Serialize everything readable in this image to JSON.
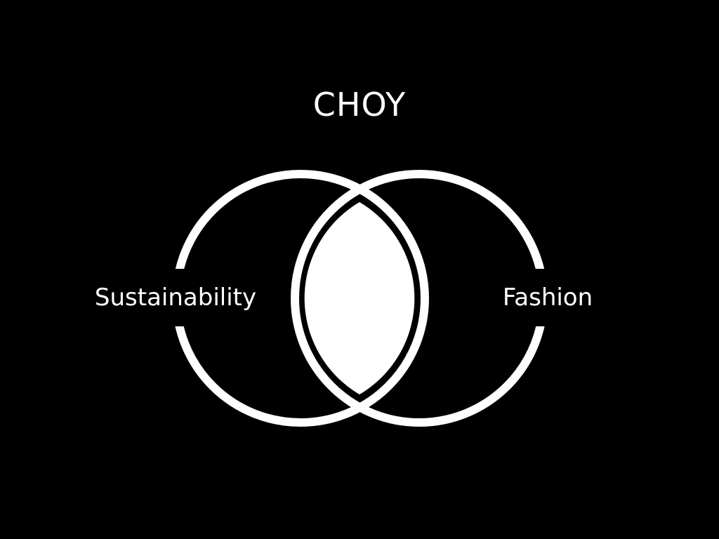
{
  "title": "CHOY",
  "sets": {
    "left": "Sustainability",
    "right": "Fashion"
  },
  "colors": {
    "background": "#000000",
    "foreground": "#ffffff"
  }
}
